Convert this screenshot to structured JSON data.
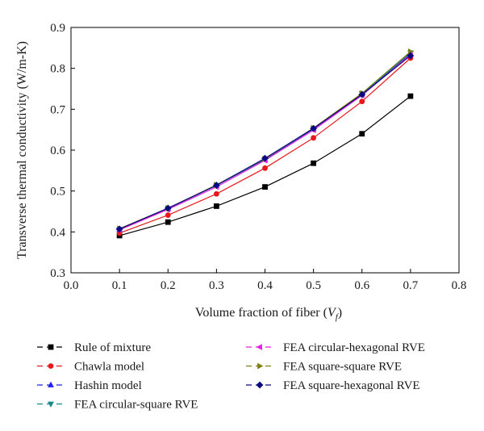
{
  "chart_data": {
    "type": "line",
    "xlabel": "Volume fraction of fiber (",
    "xlabel_var": "V",
    "xlabel_sub": "f",
    "xlabel_close": ")",
    "ylabel": "Transverse thermal conductivity (W/m-K)",
    "xlim": [
      0.0,
      0.8
    ],
    "ylim": [
      0.3,
      0.9
    ],
    "x_ticks": [
      "0.0",
      "0.1",
      "0.2",
      "0.3",
      "0.4",
      "0.5",
      "0.6",
      "0.7",
      "0.8"
    ],
    "y_ticks": [
      "0.3",
      "0.4",
      "0.5",
      "0.6",
      "0.7",
      "0.8",
      "0.9"
    ],
    "grid": false,
    "legend_position": "bottom",
    "x": [
      0.1,
      0.2,
      0.3,
      0.4,
      0.5,
      0.6,
      0.7
    ],
    "series": [
      {
        "name": "Rule of mixture",
        "color": "#000000",
        "marker": "square",
        "values": [
          0.391,
          0.424,
          0.463,
          0.51,
          0.568,
          0.64,
          0.732
        ]
      },
      {
        "name": "Chawla model",
        "color": "#e8191c",
        "marker": "circle",
        "values": [
          0.397,
          0.441,
          0.493,
          0.556,
          0.63,
          0.719,
          0.825
        ]
      },
      {
        "name": "Hashin model",
        "color": "#1e22e6",
        "marker": "triangle-up",
        "values": [
          0.406,
          0.457,
          0.514,
          0.577,
          0.652,
          0.737,
          0.835
        ]
      },
      {
        "name": "FEA circular-square RVE",
        "color": "#128a8a",
        "marker": "triangle-down",
        "values": [
          0.406,
          0.457,
          0.514,
          0.578,
          0.653,
          0.738,
          0.838
        ]
      },
      {
        "name": "FEA circular-hexagonal RVE",
        "color": "#e61ee6",
        "marker": "triangle-left",
        "values": [
          0.405,
          0.455,
          0.51,
          0.575,
          0.649,
          0.734,
          0.834
        ]
      },
      {
        "name": "FEA square-square RVE",
        "color": "#7d7d10",
        "marker": "triangle-right",
        "values": [
          0.408,
          0.458,
          0.515,
          0.579,
          0.654,
          0.739,
          0.841
        ]
      },
      {
        "name": "FEA square-hexagonal RVE",
        "color": "#0a0a80",
        "marker": "diamond",
        "values": [
          0.407,
          0.458,
          0.514,
          0.58,
          0.653,
          0.736,
          0.831
        ]
      }
    ]
  }
}
